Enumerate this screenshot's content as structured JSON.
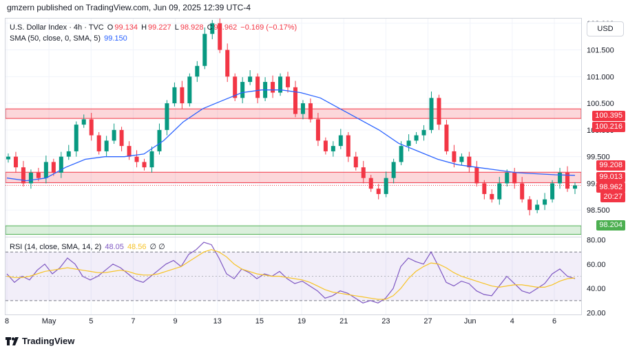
{
  "header": {
    "publisher_line": "gmzern published on TradingView.com, Jun 09, 2025 12:39 UTC-4"
  },
  "legend": {
    "symbol": "U.S. Dollar Index · 4h · TVC",
    "open_label": "O",
    "open": "99.134",
    "high_label": "H",
    "high": "99.227",
    "low_label": "L",
    "low": "98.928",
    "close_label": "C",
    "close": "98.962",
    "change": "−0.169 (−0.17%)",
    "sma_label": "SMA (50, close, 0, SMA, 5)",
    "sma_value": "99.150",
    "rsi_label": "RSI (14, close, SMA, 14, 2)",
    "rsi_value": "48.05",
    "rsi_sma_value": "48.56",
    "rsi_extra": "∅ ∅"
  },
  "currency_button": "USD",
  "footer": {
    "brand": "TradingView"
  },
  "colors": {
    "up": "#089981",
    "down": "#f23645",
    "sma": "#2962ff",
    "rsi": "#7e57c2",
    "rsi_sma": "#f7c325",
    "zone_red": "#f23645",
    "zone_green": "#4caf50"
  },
  "chart_data": [
    {
      "type": "candlestick",
      "title": "U.S. Dollar Index · 4h · TVC",
      "x_tick_labels": [
        "8",
        "May",
        "5",
        "7",
        "9",
        "13",
        "15",
        "19",
        "21",
        "23",
        "27",
        "Jun",
        "4",
        "6"
      ],
      "y_tick_labels": [
        "98.500",
        "99.000",
        "99.500",
        "100.000",
        "100.500",
        "101.000",
        "101.500",
        "102.000"
      ],
      "ylim": [
        98.0,
        102.1
      ],
      "grid": true,
      "close_path": [
        99.5,
        99.3,
        99.0,
        99.2,
        99.1,
        99.4,
        99.2,
        99.5,
        99.6,
        100.1,
        100.2,
        99.9,
        99.6,
        99.8,
        100.0,
        99.7,
        99.5,
        99.4,
        99.3,
        99.6,
        100.0,
        100.5,
        100.8,
        100.5,
        101.0,
        101.2,
        101.8,
        102.0,
        101.5,
        101.0,
        100.6,
        100.9,
        101.0,
        100.6,
        100.9,
        100.7,
        101.0,
        100.8,
        100.3,
        100.5,
        100.2,
        99.8,
        99.6,
        99.7,
        99.9,
        99.5,
        99.3,
        99.1,
        98.9,
        98.8,
        99.1,
        99.4,
        99.7,
        99.8,
        99.9,
        100.0,
        100.6,
        100.1,
        99.6,
        99.4,
        99.5,
        99.3,
        99.0,
        98.8,
        98.7,
        99.0,
        99.2,
        99.0,
        98.7,
        98.5,
        98.6,
        98.7,
        99.0,
        99.2,
        98.9,
        98.96
      ],
      "sma_path": [
        99.1,
        99.05,
        99.1,
        99.3,
        99.45,
        99.5,
        99.5,
        99.55,
        99.8,
        100.15,
        100.4,
        100.55,
        100.7,
        100.75,
        100.75,
        100.7,
        100.6,
        100.4,
        100.2,
        100.0,
        99.75,
        99.6,
        99.45,
        99.35,
        99.3,
        99.25,
        99.2,
        99.18,
        99.16,
        99.15
      ],
      "horizontal_levels": [
        {
          "label": "100.395",
          "value": 100.395,
          "color": "#f23645"
        },
        {
          "label": "100.216",
          "value": 100.216,
          "color": "#f23645"
        },
        {
          "label": "99.208",
          "value": 99.208,
          "color": "#f23645"
        },
        {
          "label": "99.013",
          "value": 99.013,
          "color": "#f23645"
        },
        {
          "label": "98.204",
          "value": 98.204,
          "color": "#4caf50"
        }
      ],
      "last_price": {
        "value": "98.962",
        "countdown": "20:27"
      }
    },
    {
      "type": "line",
      "title": "RSI (14, close, SMA, 14, 2)",
      "y_tick_labels": [
        "20.00",
        "40.00",
        "60.00",
        "80.00"
      ],
      "ylim": [
        18,
        82
      ],
      "band": [
        30,
        70
      ],
      "series": [
        {
          "name": "RSI",
          "values": [
            52,
            45,
            50,
            47,
            55,
            60,
            52,
            57,
            65,
            60,
            50,
            47,
            50,
            55,
            60,
            57,
            52,
            47,
            45,
            50,
            55,
            60,
            63,
            58,
            68,
            72,
            78,
            76,
            65,
            52,
            48,
            56,
            53,
            48,
            52,
            50,
            54,
            48,
            44,
            46,
            42,
            38,
            32,
            34,
            38,
            36,
            32,
            28,
            30,
            28,
            32,
            40,
            58,
            65,
            62,
            60,
            70,
            58,
            45,
            42,
            46,
            44,
            38,
            35,
            34,
            42,
            50,
            44,
            38,
            36,
            40,
            44,
            52,
            56,
            50,
            48
          ]
        },
        {
          "name": "SMA",
          "values": [
            50,
            49,
            49,
            50,
            52,
            54,
            55,
            56,
            57,
            56,
            55,
            54,
            53,
            53,
            54,
            55,
            54,
            52,
            51,
            51,
            52,
            54,
            56,
            58,
            62,
            66,
            70,
            72,
            70,
            66,
            60,
            56,
            54,
            52,
            51,
            50,
            50,
            49,
            48,
            47,
            45,
            42,
            39,
            37,
            36,
            35,
            34,
            33,
            32,
            31,
            31,
            34,
            40,
            48,
            54,
            58,
            61,
            60,
            57,
            53,
            50,
            48,
            46,
            44,
            42,
            41,
            42,
            43,
            43,
            42,
            41,
            41,
            43,
            46,
            48,
            48.56
          ]
        }
      ]
    }
  ]
}
